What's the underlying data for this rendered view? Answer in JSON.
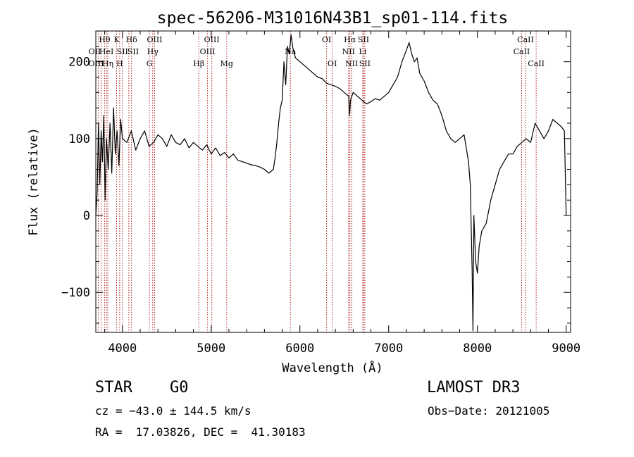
{
  "chart_data": {
    "type": "line",
    "title": "spec-56206-M31016N43B1_sp01-114.fits",
    "xlabel": "Wavelength (Å)",
    "ylabel": "Flux (relative)",
    "xlim": [
      3700,
      9050
    ],
    "ylim": [
      -152,
      240
    ],
    "xticks": [
      4000,
      5000,
      6000,
      7000,
      8000,
      9000
    ],
    "xtick_labels": [
      "4000",
      "5000",
      "6000",
      "7000",
      "8000",
      "9000"
    ],
    "yticks": [
      -100,
      0,
      100,
      200
    ],
    "ytick_labels": [
      "−100",
      "0",
      "100",
      "200"
    ],
    "spectrum": {
      "x": [
        3700,
        3715,
        3730,
        3745,
        3760,
        3775,
        3790,
        3805,
        3820,
        3840,
        3860,
        3880,
        3900,
        3920,
        3940,
        3960,
        3980,
        4000,
        4050,
        4100,
        4150,
        4200,
        4250,
        4300,
        4350,
        4400,
        4450,
        4500,
        4550,
        4600,
        4650,
        4700,
        4750,
        4800,
        4850,
        4900,
        4950,
        5000,
        5050,
        5100,
        5150,
        5200,
        5250,
        5300,
        5350,
        5400,
        5450,
        5500,
        5550,
        5600,
        5650,
        5700,
        5720,
        5740,
        5760,
        5780,
        5800,
        5820,
        5840,
        5860,
        5880,
        5900,
        5920,
        5950,
        6000,
        6050,
        6100,
        6150,
        6200,
        6250,
        6300,
        6350,
        6400,
        6450,
        6500,
        6550,
        6560,
        6570,
        6600,
        6650,
        6700,
        6750,
        6800,
        6850,
        6900,
        6950,
        7000,
        7050,
        7100,
        7150,
        7200,
        7230,
        7260,
        7290,
        7320,
        7350,
        7400,
        7450,
        7500,
        7550,
        7600,
        7650,
        7700,
        7750,
        7800,
        7850,
        7900,
        7920,
        7940,
        7950,
        7960,
        7980,
        8000,
        8020,
        8050,
        8100,
        8150,
        8200,
        8250,
        8300,
        8350,
        8400,
        8450,
        8500,
        8550,
        8600,
        8650,
        8700,
        8750,
        8800,
        8850,
        8900,
        8950,
        8980,
        9000
      ],
      "y": [
        0,
        30,
        120,
        40,
        110,
        70,
        130,
        20,
        100,
        60,
        120,
        55,
        140,
        80,
        110,
        65,
        125,
        100,
        95,
        110,
        85,
        100,
        110,
        90,
        95,
        105,
        100,
        90,
        105,
        95,
        92,
        100,
        88,
        95,
        90,
        85,
        92,
        80,
        88,
        78,
        82,
        75,
        80,
        72,
        70,
        68,
        66,
        65,
        63,
        60,
        55,
        60,
        75,
        95,
        120,
        140,
        150,
        200,
        170,
        220,
        210,
        235,
        218,
        205,
        200,
        195,
        190,
        185,
        180,
        178,
        172,
        170,
        168,
        165,
        160,
        155,
        130,
        150,
        160,
        155,
        150,
        145,
        148,
        152,
        150,
        155,
        160,
        170,
        180,
        200,
        215,
        225,
        210,
        200,
        205,
        185,
        175,
        160,
        150,
        145,
        130,
        110,
        100,
        95,
        100,
        105,
        70,
        40,
        -70,
        -150,
        0,
        -60,
        -75,
        -40,
        -20,
        -10,
        20,
        40,
        60,
        70,
        80,
        80,
        90,
        95,
        100,
        95,
        120,
        110,
        100,
        110,
        125,
        120,
        115,
        110,
        0
      ]
    },
    "lines": [
      {
        "name": "Hθ",
        "x": 3798,
        "row": 0,
        "ha": "center"
      },
      {
        "name": "OII",
        "x": 3727,
        "row": 1,
        "ha": "right"
      },
      {
        "name": "OIII",
        "x": 3760,
        "row": 2,
        "ha": "right"
      },
      {
        "name": "HeI",
        "x": 3820,
        "row": 1,
        "ha": "center"
      },
      {
        "name": "Hη",
        "x": 3835,
        "row": 2,
        "ha": "center"
      },
      {
        "name": "K",
        "x": 3934,
        "row": 0,
        "ha": "center"
      },
      {
        "name": "SII",
        "x": 4000,
        "row": 1,
        "ha": "center"
      },
      {
        "name": "H",
        "x": 3969,
        "row": 2,
        "ha": "center"
      },
      {
        "name": "Hδ",
        "x": 4102,
        "row": 0,
        "ha": "center"
      },
      {
        "name": "SII",
        "x": 4072,
        "row": 1,
        "ha": "left"
      },
      {
        "name": "OIII",
        "x": 4363,
        "row": 0,
        "ha": "center"
      },
      {
        "name": "Hγ",
        "x": 4341,
        "row": 1,
        "ha": "center"
      },
      {
        "name": "G",
        "x": 4304,
        "row": 2,
        "ha": "center"
      },
      {
        "name": "OIII",
        "x": 5007,
        "row": 0,
        "ha": "center"
      },
      {
        "name": "OIII",
        "x": 4959,
        "row": 1,
        "ha": "center"
      },
      {
        "name": "Hβ",
        "x": 4861,
        "row": 2,
        "ha": "center"
      },
      {
        "name": "Mg",
        "x": 5175,
        "row": 2,
        "ha": "center"
      },
      {
        "name": "Na",
        "x": 5893,
        "row": 1,
        "ha": "center"
      },
      {
        "name": "OI",
        "x": 6300,
        "row": 0,
        "ha": "center"
      },
      {
        "name": "OI",
        "x": 6364,
        "row": 2,
        "ha": "center"
      },
      {
        "name": "Hα",
        "x": 6563,
        "row": 0,
        "ha": "center"
      },
      {
        "name": "SII",
        "x": 6716,
        "row": 0,
        "ha": "center"
      },
      {
        "name": "NII",
        "x": 6548,
        "row": 1,
        "ha": "center"
      },
      {
        "name": "Li",
        "x": 6708,
        "row": 1,
        "ha": "center"
      },
      {
        "name": "NII",
        "x": 6583,
        "row": 2,
        "ha": "center"
      },
      {
        "name": "SII",
        "x": 6731,
        "row": 2,
        "ha": "center"
      },
      {
        "name": "CaII",
        "x": 8542,
        "row": 0,
        "ha": "center"
      },
      {
        "name": "CaII",
        "x": 8498,
        "row": 1,
        "ha": "center"
      },
      {
        "name": "CaII",
        "x": 8662,
        "row": 2,
        "ha": "center"
      }
    ],
    "line_color": "#b22222"
  },
  "info": {
    "obj_class": "STAR",
    "subclass": "G0",
    "survey": "LAMOST DR3",
    "cz": "cz = −43.0 ± 144.5 km/s",
    "obs_date": "Obs−Date: 20121005",
    "radec": "RA =  17.03826, DEC =  41.30183"
  }
}
